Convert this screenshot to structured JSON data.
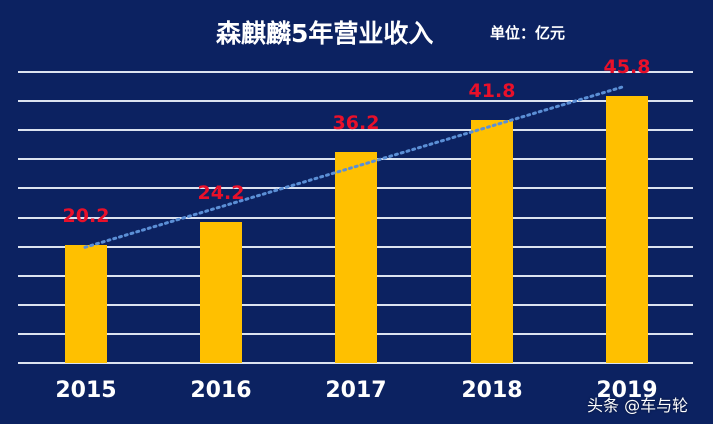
{
  "title": "森麒麟5年营业收入",
  "unit_label": "单位：亿元",
  "watermark": "头条 @车与轮",
  "colors": {
    "background": "#0C2261",
    "bar": "#FFC000",
    "value_label": "#E8102A",
    "gridline": "#DCE3F0",
    "trendline": "#5B8FD6",
    "text": "#FFFFFF"
  },
  "chart_data": {
    "type": "bar",
    "title": "森麒麟5年营业收入",
    "subtitle": "单位：亿元",
    "categories": [
      "2015",
      "2016",
      "2017",
      "2018",
      "2019"
    ],
    "values": [
      20.2,
      24.2,
      36.2,
      41.8,
      45.8
    ],
    "value_labels": [
      "20.2",
      "24.2",
      "36.2",
      "41.8",
      "45.8"
    ],
    "xlabel": "",
    "ylabel": "",
    "ylim": [
      0,
      50
    ],
    "grid": true,
    "grid_step": 5,
    "y_ticks_visible": false,
    "trendline": {
      "type": "linear",
      "style": "dotted"
    },
    "legend": null
  }
}
